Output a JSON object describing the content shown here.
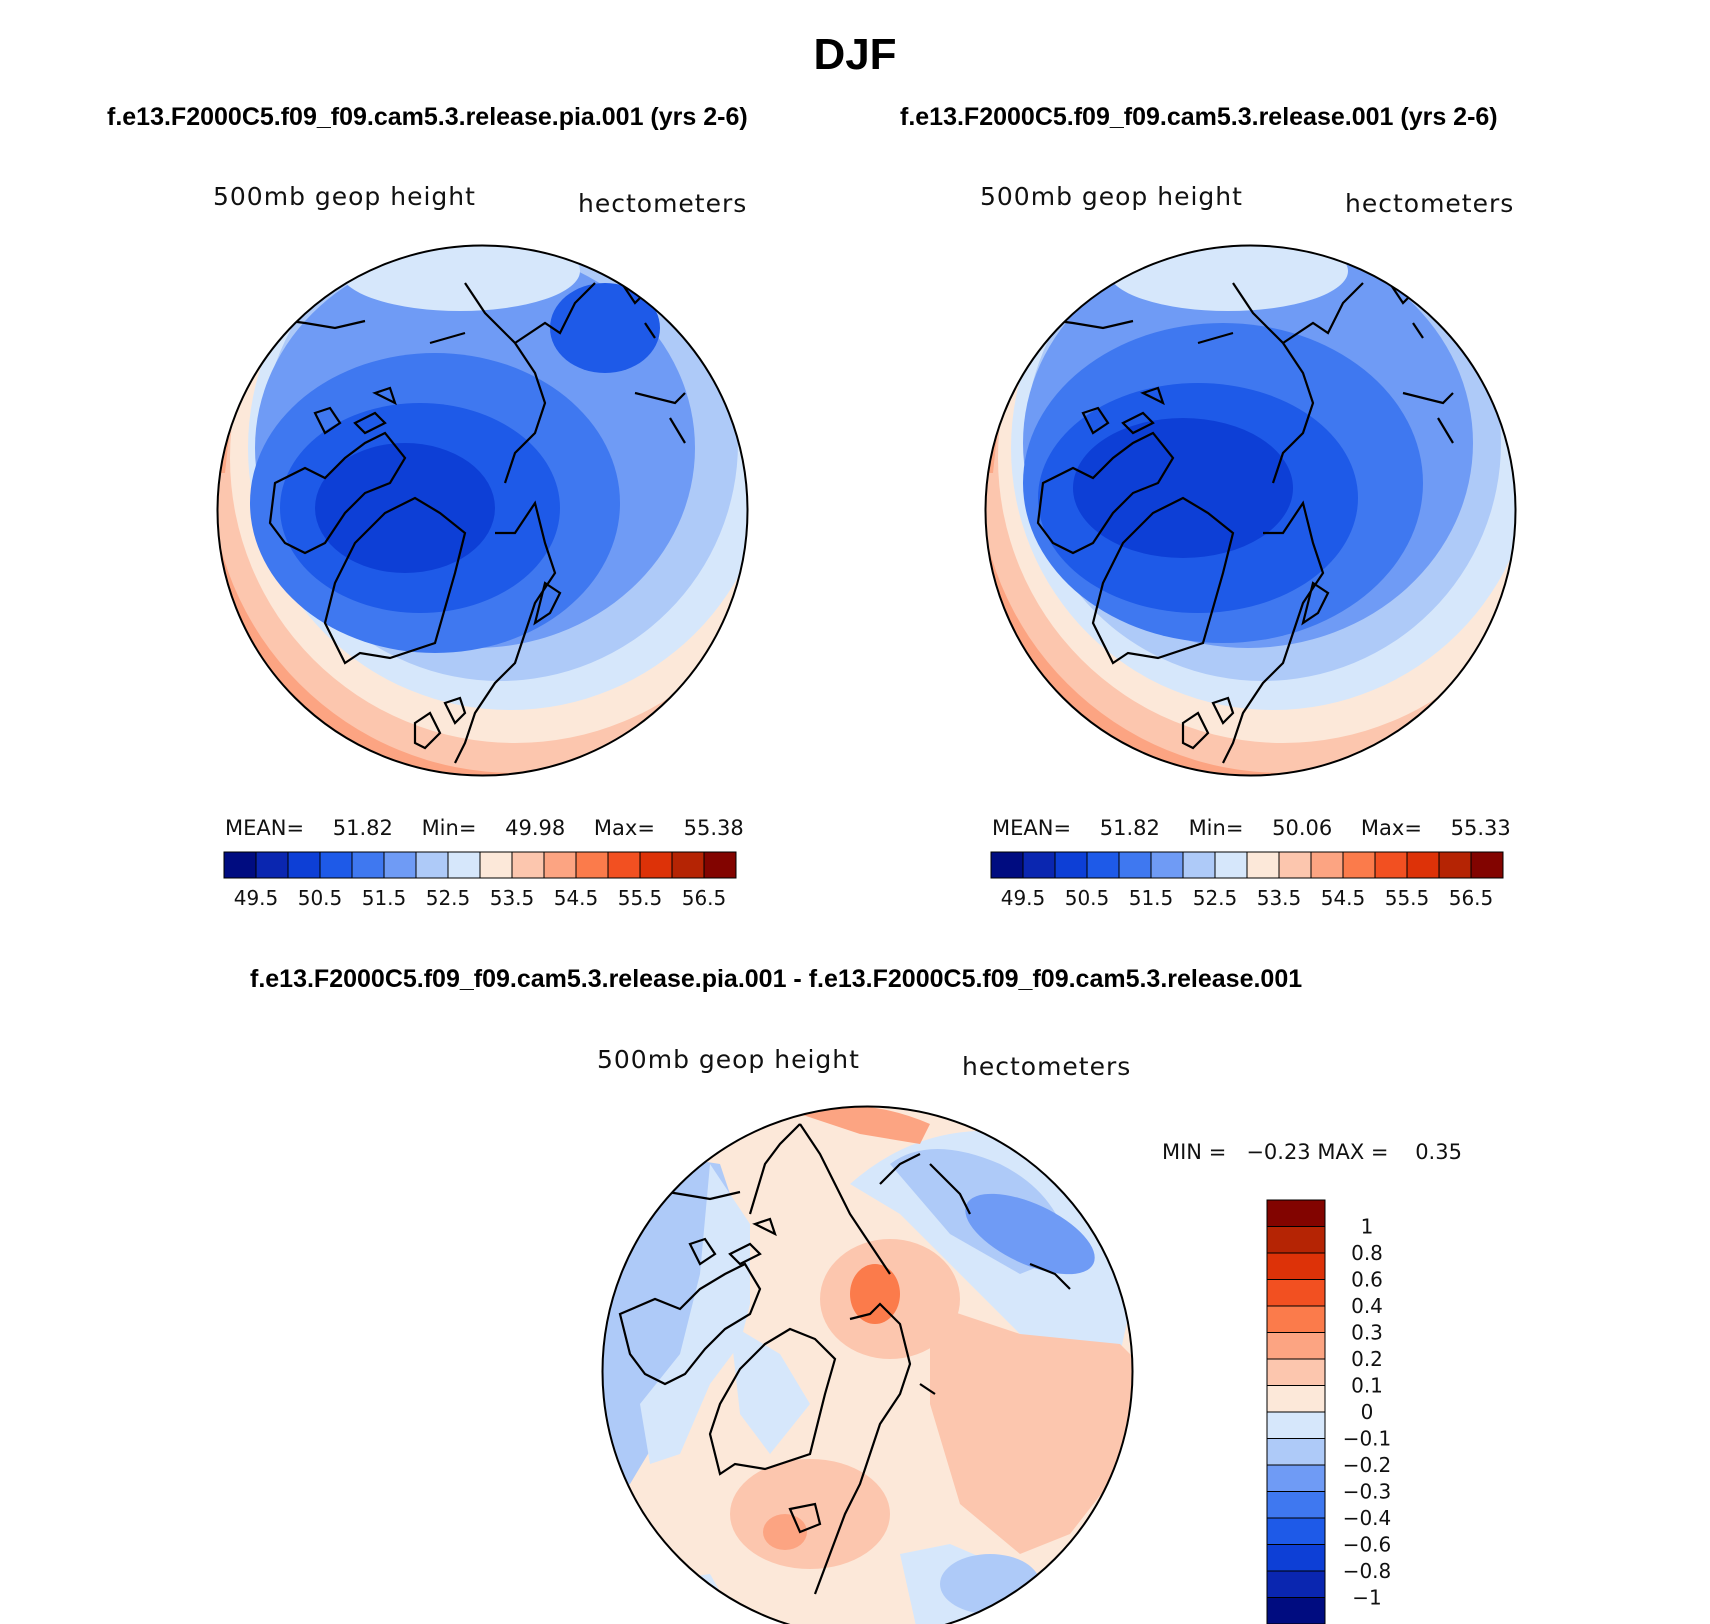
{
  "figure": {
    "title": "DJF",
    "panels": [
      {
        "case_title": "f.e13.F2000C5.f09_f09.cam5.3.release.pia.001 (yrs 2-6)",
        "left_label": "500mb geop height",
        "right_label": "hectometers",
        "stats": {
          "mean_label": "MEAN=",
          "mean": "51.82",
          "min_label": "Min=",
          "min": "49.98",
          "max_label": "Max=",
          "max": "55.38"
        }
      },
      {
        "case_title": "f.e13.F2000C5.f09_f09.cam5.3.release.001 (yrs 2-6)",
        "left_label": "500mb geop height",
        "right_label": "hectometers",
        "stats": {
          "mean_label": "MEAN=",
          "mean": "51.82",
          "min_label": "Min=",
          "min": "50.06",
          "max_label": "Max=",
          "max": "55.33"
        }
      }
    ],
    "diff_panel": {
      "case_title": "f.e13.F2000C5.f09_f09.cam5.3.release.pia.001 - f.e13.F2000C5.f09_f09.cam5.3.release.001",
      "left_label": "500mb geop height",
      "right_label": "hectometers",
      "minmax": "MIN =   −0.23 MAX =    0.35"
    },
    "abs_colorbar": {
      "ticks": [
        "49.5",
        "50.5",
        "51.5",
        "52.5",
        "53.5",
        "54.5",
        "55.5",
        "56.5"
      ],
      "colors": [
        "#000c80",
        "#0a26b0",
        "#0d3fd6",
        "#1e5ae8",
        "#3f78f0",
        "#6f9bf5",
        "#aecaf8",
        "#d6e7fb",
        "#fce8d9",
        "#fcc6ae",
        "#fca482",
        "#fb7b4b",
        "#f25021",
        "#dd3208",
        "#b52404",
        "#820400"
      ]
    },
    "diff_colorbar": {
      "ticks": [
        "1",
        "0.8",
        "0.6",
        "0.4",
        "0.3",
        "0.2",
        "0.1",
        "0",
        "−0.1",
        "−0.2",
        "−0.3",
        "−0.4",
        "−0.6",
        "−0.8",
        "−1"
      ],
      "colors_top_to_bottom": [
        "#820400",
        "#b52404",
        "#dd3208",
        "#f25021",
        "#fb7b4b",
        "#fca482",
        "#fcc6ae",
        "#fce8d9",
        "#d6e7fb",
        "#aecaf8",
        "#6f9bf5",
        "#3f78f0",
        "#1e5ae8",
        "#0d3fd6",
        "#0a26b0",
        "#000c80"
      ]
    }
  },
  "chart_data": {
    "type": "heatmap",
    "title": "DJF",
    "variable": "500mb geop height",
    "units": "hectometers",
    "season": "DJF",
    "panels": [
      {
        "case": "f.e13.F2000C5.f09_f09.cam5.3.release.pia.001 (yrs 2-6)",
        "mean": 51.82,
        "min": 49.98,
        "max": 55.38,
        "contour_levels": [
          49.5,
          50,
          50.5,
          51,
          51.5,
          52,
          52.5,
          53,
          53.5,
          54,
          54.5,
          55,
          55.5,
          56,
          56.5
        ]
      },
      {
        "case": "f.e13.F2000C5.f09_f09.cam5.3.release.001 (yrs 2-6)",
        "mean": 51.82,
        "min": 50.06,
        "max": 55.33,
        "contour_levels": [
          49.5,
          50,
          50.5,
          51,
          51.5,
          52,
          52.5,
          53,
          53.5,
          54,
          54.5,
          55,
          55.5,
          56,
          56.5
        ]
      },
      {
        "case": "f.e13.F2000C5.f09_f09.cam5.3.release.pia.001 - f.e13.F2000C5.f09_f09.cam5.3.release.001",
        "min": -0.23,
        "max": 0.35,
        "contour_levels": [
          -1,
          -0.8,
          -0.6,
          -0.4,
          -0.3,
          -0.2,
          -0.1,
          0,
          0.1,
          0.2,
          0.3,
          0.4,
          0.6,
          0.8,
          1
        ]
      }
    ]
  }
}
